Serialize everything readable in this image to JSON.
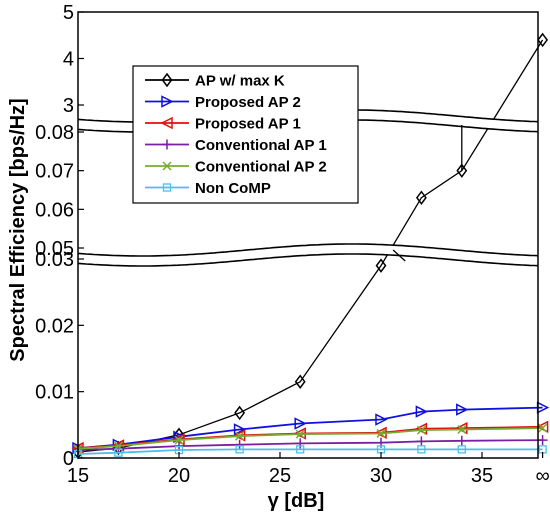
{
  "chart_data": {
    "type": "line",
    "xlabel": "γ [dB]",
    "ylabel": "Spectral Efficiency [bps/Hz]",
    "x_ticks": [
      "15",
      "20",
      "25",
      "30",
      "35",
      "∞"
    ],
    "y_ticks": [
      "0",
      "0.01",
      "0.02",
      "0.03",
      "0.05",
      "0.06",
      "0.07",
      "0.08",
      "3",
      "4",
      "5"
    ],
    "axis_breaks": [
      [
        0.03,
        0.05
      ],
      [
        0.08,
        3
      ]
    ],
    "x": [
      15,
      17,
      20,
      23,
      26,
      30,
      32,
      34,
      36,
      38
    ],
    "x_labels_note": "",
    "grid": false,
    "legend_position": "top-left",
    "series": [
      {
        "name": "AP w/ max K",
        "color": "#000000",
        "marker": "diamond",
        "values": [
          0.0009,
          0.0015,
          0.0035,
          0.0068,
          0.0115,
          0.029,
          0.063,
          0.07,
          null,
          4.4
        ]
      },
      {
        "name": "Proposed AP 2",
        "color": "#1010e0",
        "marker": "triangle-right",
        "values": [
          0.0015,
          0.002,
          0.0032,
          0.0043,
          0.0052,
          0.0058,
          0.007,
          0.0073,
          null,
          0.0076
        ]
      },
      {
        "name": "Proposed AP 1",
        "color": "#e01010",
        "marker": "triangle-left",
        "values": [
          0.0015,
          0.0019,
          0.0028,
          0.0034,
          0.0037,
          0.0038,
          0.0044,
          0.0045,
          null,
          0.0047
        ]
      },
      {
        "name": "Conventional AP 1",
        "color": "#7a1fa2",
        "marker": "plus",
        "values": [
          0.0012,
          0.0014,
          0.0018,
          0.002,
          0.0022,
          0.0023,
          0.0025,
          0.0026,
          null,
          0.0027
        ]
      },
      {
        "name": "Conventional AP 2",
        "color": "#77ac30",
        "marker": "x",
        "values": [
          0.0014,
          0.0018,
          0.0027,
          0.0033,
          0.0036,
          0.0037,
          0.0042,
          0.0043,
          null,
          0.0045
        ]
      },
      {
        "name": "Non CoMP",
        "color": "#4dbeee",
        "marker": "square",
        "values": [
          0.0006,
          0.0008,
          0.0012,
          0.0013,
          0.0013,
          0.0013,
          0.0013,
          0.0013,
          null,
          0.0013
        ]
      }
    ]
  }
}
